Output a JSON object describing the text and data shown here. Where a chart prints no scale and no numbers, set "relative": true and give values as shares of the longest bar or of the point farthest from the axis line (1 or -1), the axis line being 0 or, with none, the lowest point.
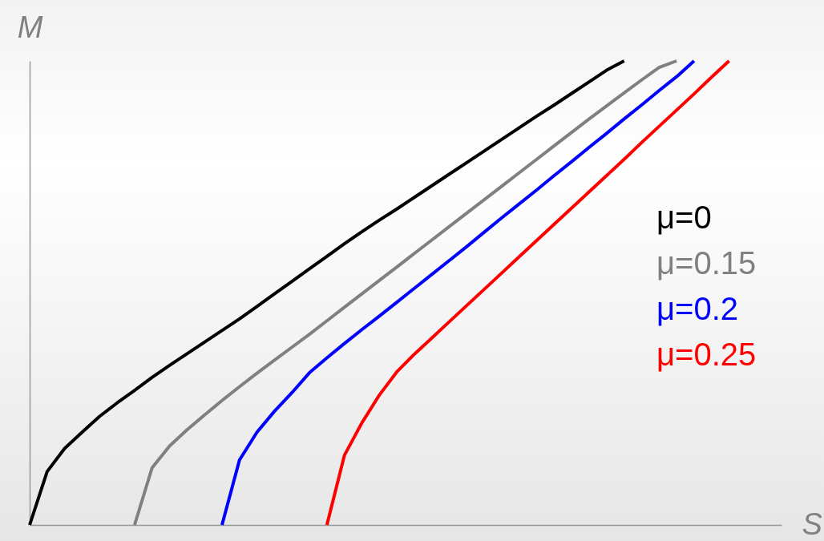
{
  "chart_data": {
    "type": "line",
    "relative": true,
    "xlabel": "S",
    "ylabel": "M",
    "grid": false,
    "marker": "none",
    "line_style": "solid",
    "categories": [
      null,
      null,
      null,
      null,
      null,
      null,
      null,
      null,
      null,
      null,
      null,
      null,
      null,
      null,
      null,
      null,
      null,
      null,
      null,
      null,
      null,
      null,
      null,
      null,
      null,
      null,
      null,
      null,
      null,
      null,
      null,
      null,
      null,
      null,
      null,
      null,
      null,
      null,
      null,
      null,
      null,
      null,
      null,
      null
    ],
    "series": [
      {
        "name": "μ=0",
        "color": "#000000",
        "values": [
          0,
          0.115,
          0.165,
          0.2,
          0.234,
          0.263,
          0.29,
          0.318,
          0.344,
          0.369,
          0.394,
          0.419,
          0.444,
          0.471,
          0.498,
          0.525,
          0.552,
          0.579,
          0.606,
          0.632,
          0.657,
          0.681,
          0.706,
          0.731,
          0.756,
          0.781,
          0.806,
          0.831,
          0.856,
          0.881,
          0.905,
          0.93,
          0.955,
          0.98,
          1,
          null,
          null,
          null,
          null,
          null,
          null,
          null,
          null,
          null
        ]
      },
      {
        "name": "μ=0.15",
        "color": "#808080",
        "values": [
          null,
          null,
          null,
          null,
          null,
          null,
          0,
          0.123,
          0.17,
          0.205,
          0.237,
          0.268,
          0.298,
          0.327,
          0.355,
          0.383,
          0.411,
          0.44,
          0.469,
          0.498,
          0.527,
          0.556,
          0.585,
          0.614,
          0.643,
          0.672,
          0.701,
          0.73,
          0.759,
          0.788,
          0.817,
          0.846,
          0.875,
          0.903,
          0.931,
          0.959,
          0.986,
          1,
          null,
          null,
          null,
          null,
          null,
          null
        ]
      },
      {
        "name": "μ=0.2",
        "color": "#0000ff",
        "values": [
          null,
          null,
          null,
          null,
          null,
          null,
          null,
          null,
          null,
          null,
          null,
          0,
          0.14,
          0.2,
          0.245,
          0.285,
          0.328,
          0.36,
          0.391,
          0.421,
          0.45,
          0.48,
          0.51,
          0.54,
          0.57,
          0.6,
          0.631,
          0.662,
          0.692,
          0.722,
          0.753,
          0.783,
          0.814,
          0.844,
          0.875,
          0.905,
          0.936,
          0.966,
          1,
          null,
          null,
          null,
          null,
          null
        ]
      },
      {
        "name": "μ=0.25",
        "color": "#ff0000",
        "values": [
          null,
          null,
          null,
          null,
          null,
          null,
          null,
          null,
          null,
          null,
          null,
          null,
          null,
          null,
          null,
          null,
          null,
          0,
          0.15,
          0.22,
          0.28,
          0.33,
          0.368,
          0.403,
          0.438,
          0.473,
          0.508,
          0.543,
          0.578,
          0.613,
          0.648,
          0.683,
          0.718,
          0.753,
          0.788,
          0.824,
          0.859,
          0.894,
          0.929,
          0.965,
          1,
          null,
          null,
          null
        ]
      }
    ]
  }
}
